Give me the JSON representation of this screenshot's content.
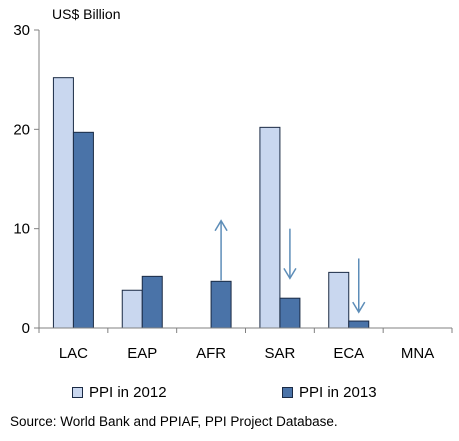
{
  "chart_data": {
    "type": "bar",
    "unit_label": "US$ Billion",
    "categories": [
      "LAC",
      "EAP",
      "AFR",
      "SAR",
      "ECA",
      "MNA"
    ],
    "series": [
      {
        "name": "PPI in 2012",
        "values": [
          25.2,
          3.8,
          0,
          20.2,
          5.6,
          0
        ]
      },
      {
        "name": "PPI in 2013",
        "values": [
          19.7,
          5.2,
          4.7,
          3.0,
          0.7,
          0
        ]
      }
    ],
    "ylim": [
      0,
      30
    ],
    "yticks": [
      "0",
      "10",
      "20",
      "30"
    ],
    "arrows": [
      {
        "category": "AFR",
        "direction": "up",
        "from": 4.8,
        "to": 10.8
      },
      {
        "category": "SAR",
        "direction": "down",
        "from": 10.0,
        "to": 5.0
      },
      {
        "category": "ECA",
        "direction": "down",
        "from": 7.0,
        "to": 1.6
      }
    ],
    "grid": false,
    "legend_position": "bottom",
    "colors": {
      "series_2012_fill": "#c9d7ef",
      "series_2013_fill": "#4a73a8",
      "bar_border": "#1a2a44",
      "arrow": "#5d8db8",
      "axis": "#808080"
    }
  },
  "legend": {
    "item1": "PPI in 2012",
    "item2": "PPI in 2013"
  },
  "source_text": "Source:  World Bank and PPIAF, PPI Project Database."
}
